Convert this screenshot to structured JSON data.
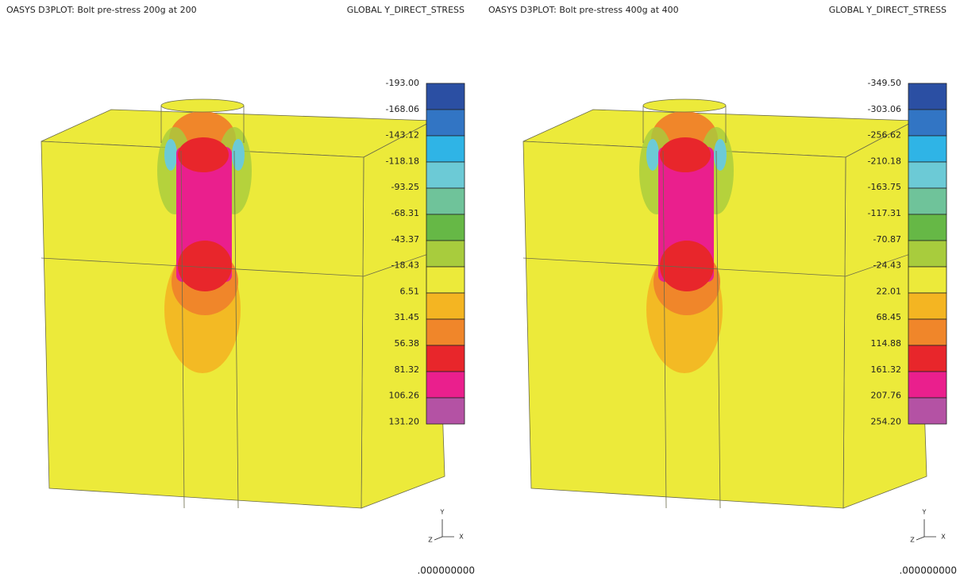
{
  "panels": [
    {
      "title": "OASYS D3PLOT: Bolt pre-stress 200g at 200",
      "quantity": "GLOBAL Y_DIRECT_STRESS",
      "legend": [
        "-193.00",
        "-168.06",
        "-143.12",
        "-118.18",
        "-93.25",
        "-68.31",
        "-43.37",
        "-18.43",
        "6.51",
        "31.45",
        "56.38",
        "81.32",
        "106.26",
        "131.20"
      ],
      "axes": [
        "Y",
        "Z",
        "X"
      ],
      "time": ".000000000"
    },
    {
      "title": "OASYS D3PLOT: Bolt pre-stress 400g at 400",
      "quantity": "GLOBAL Y_DIRECT_STRESS",
      "legend": [
        "-349.50",
        "-303.06",
        "-256.62",
        "-210.18",
        "-163.75",
        "-117.31",
        "-70.87",
        "-24.43",
        "22.01",
        "68.45",
        "114.88",
        "161.32",
        "207.76",
        "254.20"
      ],
      "axes": [
        "Y",
        "Z",
        "X"
      ],
      "time": ".000000000"
    }
  ],
  "colors": [
    "#2b4fa3",
    "#3275c4",
    "#2fb4e6",
    "#6ccad6",
    "#6fc39a",
    "#66b846",
    "#a8cc3d",
    "#ecea3a",
    "#f4b522",
    "#f0862a",
    "#e8262b",
    "#ea1f8d",
    "#b452a4"
  ]
}
